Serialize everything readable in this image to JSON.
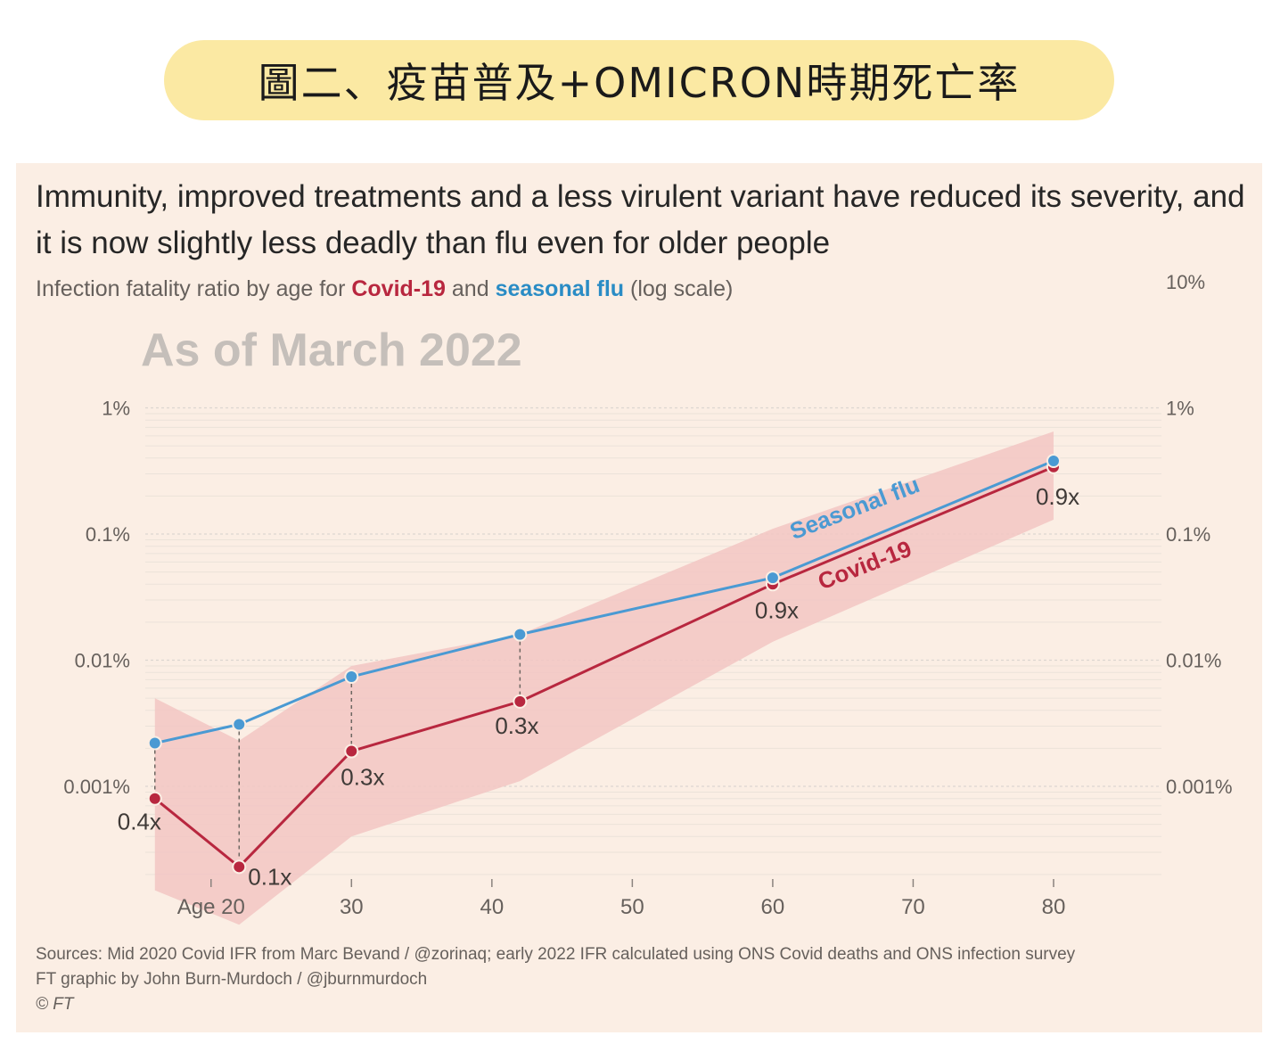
{
  "banner": {
    "title": "圖二、疫苗普及+OMICRON時期死亡率"
  },
  "header": {
    "headline": "Immunity, improved treatments and a less virulent variant have reduced its severity, and it is now slightly less deadly than flu even for older people",
    "subtitle_prefix": "Infection fatality ratio by age for ",
    "subtitle_covid": "Covid-19",
    "subtitle_and": " and ",
    "subtitle_flu": "seasonal flu",
    "subtitle_suffix": " (log scale)",
    "date_label": "As of March 2022"
  },
  "footer": {
    "sources": "Sources: Mid 2020 Covid IFR from Marc Bevand / @zorinaq; early 2022 IFR calculated using ONS Covid deaths and ONS infection survey",
    "credit": "FT graphic by John Burn-Murdoch / @jburnmurdoch",
    "copyright": "© FT"
  },
  "colors": {
    "covid": "#b8273f",
    "flu": "#4a9ad3",
    "band": "#f2c6c3",
    "text": "#66605c",
    "grid": "#dcd6d0"
  },
  "chart_data": {
    "type": "line",
    "y_scale": "log",
    "ylim_percent": [
      0.00012,
      10
    ],
    "y_ticks_left": [
      "1%",
      "0.1%",
      "0.01%",
      "0.001%"
    ],
    "y_ticks_right": [
      "10%",
      "1%",
      "0.1%",
      "0.01%",
      "0.001%"
    ],
    "x_ticks": [
      {
        "value": 20,
        "label": "Age 20"
      },
      {
        "value": 30,
        "label": "30"
      },
      {
        "value": 40,
        "label": "40"
      },
      {
        "value": 50,
        "label": "50"
      },
      {
        "value": 60,
        "label": "60"
      },
      {
        "value": 70,
        "label": "70"
      },
      {
        "value": 80,
        "label": "80"
      }
    ],
    "xlim": [
      15,
      88
    ],
    "series": [
      {
        "name": "Seasonal flu",
        "key": "flu",
        "x": [
          16,
          22,
          30,
          42,
          60,
          80
        ],
        "y": [
          0.0022,
          0.0031,
          0.0074,
          0.016,
          0.045,
          0.38
        ]
      },
      {
        "name": "Covid-19",
        "key": "covid",
        "x": [
          16,
          22,
          30,
          42,
          60,
          80
        ],
        "y": [
          0.0008,
          0.00023,
          0.0019,
          0.0047,
          0.04,
          0.34
        ]
      }
    ],
    "covid_range_band": {
      "x": [
        16,
        22,
        30,
        42,
        60,
        80
      ],
      "upper": [
        0.005,
        0.0023,
        0.009,
        0.016,
        0.11,
        0.65
      ],
      "lower": [
        0.00015,
        8e-05,
        0.0004,
        0.0011,
        0.014,
        0.13
      ]
    },
    "ratio_labels": [
      {
        "x": 16,
        "text": "0.4x"
      },
      {
        "x": 22,
        "text": "0.1x"
      },
      {
        "x": 30,
        "text": "0.3x"
      },
      {
        "x": 42,
        "text": "0.3x"
      },
      {
        "x": 60,
        "text": "0.9x"
      },
      {
        "x": 80,
        "text": "0.9x"
      }
    ]
  }
}
